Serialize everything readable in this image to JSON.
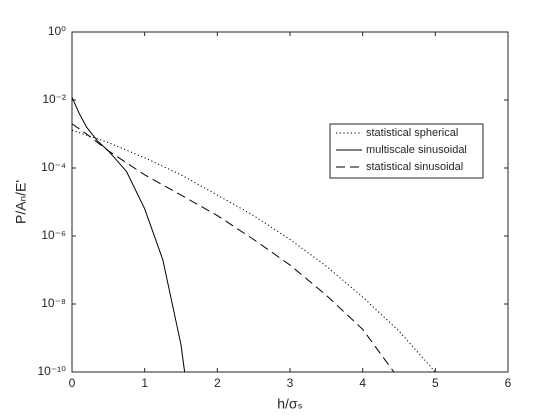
{
  "chart_data": {
    "type": "line",
    "xlabel": "h/σₛ",
    "ylabel": "P/Aₙ/E'",
    "xlim": [
      0,
      6
    ],
    "xticks": [
      0,
      1,
      2,
      3,
      4,
      5,
      6
    ],
    "ylim": [
      1e-10,
      1
    ],
    "yscale": "log",
    "yticks": [
      {
        "value": 1e-10,
        "label": "10⁻¹⁰"
      },
      {
        "value": 1e-08,
        "label": "10⁻⁸"
      },
      {
        "value": 1e-06,
        "label": "10⁻⁶"
      },
      {
        "value": 0.0001,
        "label": "10⁻⁴"
      },
      {
        "value": 0.01,
        "label": "10⁻²"
      },
      {
        "value": 1,
        "label": "10⁰"
      }
    ],
    "legend": "upper right",
    "series": [
      {
        "name": "statistical spherical",
        "color": "#000000",
        "dash": "dotted",
        "x": [
          0,
          0.5,
          1,
          1.5,
          2,
          2.5,
          3,
          3.5,
          4,
          4.5,
          5
        ],
        "values": [
          0.0013,
          0.00056,
          0.0002,
          6.3e-05,
          1.6e-05,
          4e-06,
          7.9e-07,
          1.3e-07,
          1.6e-08,
          1.6e-09,
          1e-10
        ]
      },
      {
        "name": "multiscale sinusoidal",
        "color": "#000000",
        "dash": "solid",
        "x": [
          0,
          0.1,
          0.2,
          0.35,
          0.5,
          0.75,
          1,
          1.25,
          1.4,
          1.5,
          1.55
        ],
        "values": [
          0.012,
          0.004,
          0.0016,
          0.00063,
          0.00032,
          7.9e-05,
          6.3e-06,
          2e-07,
          6.3e-09,
          6.3e-10,
          1e-10
        ]
      },
      {
        "name": "statistical sinusoidal",
        "color": "#000000",
        "dash": "dashed",
        "x": [
          0,
          0.2,
          0.5,
          1,
          1.5,
          2,
          2.5,
          3,
          3.5,
          4,
          4.43
        ],
        "values": [
          0.002,
          0.001,
          0.00032,
          6.3e-05,
          1.6e-05,
          4e-06,
          7.9e-07,
          1.4e-07,
          1.8e-08,
          1.8e-09,
          1e-10
        ]
      }
    ]
  }
}
